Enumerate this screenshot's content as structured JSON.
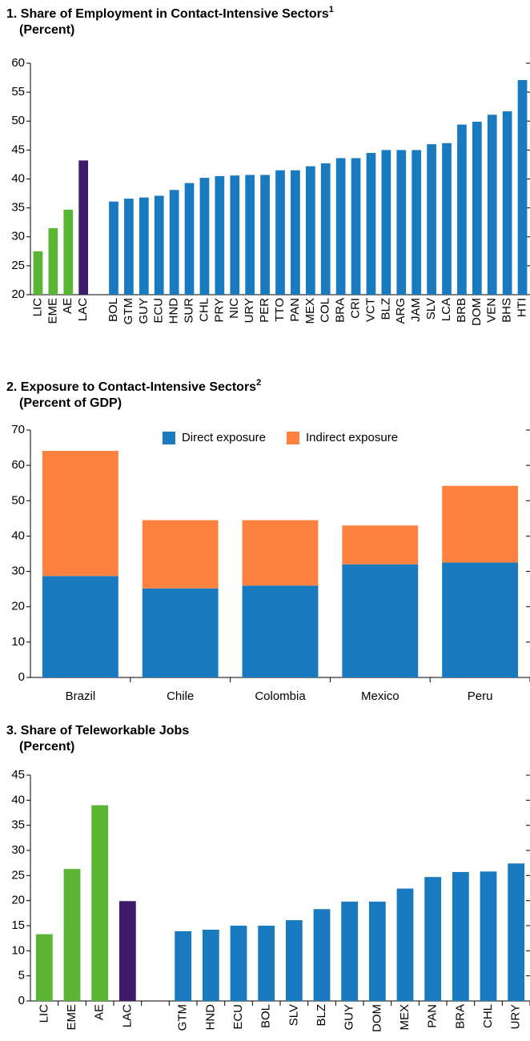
{
  "chart_data": [
    {
      "type": "bar",
      "title": "1. Share of Employment in Contact-Intensive Sectors",
      "title_note": "1",
      "subtitle": "(Percent)",
      "categories": [
        "LIC",
        "EME",
        "AE",
        "LAC",
        null,
        "BOL",
        "GTM",
        "GUY",
        "ECU",
        "HND",
        "SUR",
        "CHL",
        "PRY",
        "NIC",
        "URY",
        "PER",
        "TTO",
        "PAN",
        "MEX",
        "COL",
        "BRA",
        "CRI",
        "VCT",
        "BLZ",
        "ARG",
        "JAM",
        "SLV",
        "LCA",
        "BRB",
        "DOM",
        "VEN",
        "BHS",
        "HTI"
      ],
      "values": [
        27.5,
        31.5,
        34.7,
        43.2,
        null,
        36.1,
        36.6,
        36.8,
        37.1,
        38.1,
        39.3,
        40.2,
        40.5,
        40.6,
        40.7,
        40.7,
        41.5,
        41.5,
        42.2,
        42.7,
        43.6,
        43.6,
        44.5,
        45.0,
        45.0,
        45.0,
        46.0,
        46.2,
        49.4,
        49.9,
        51.1,
        51.7,
        57.1
      ],
      "colors": [
        "#5ab534",
        "#5ab534",
        "#5ab534",
        "#3f1a6a",
        null,
        "#1a7abf",
        "#1a7abf",
        "#1a7abf",
        "#1a7abf",
        "#1a7abf",
        "#1a7abf",
        "#1a7abf",
        "#1a7abf",
        "#1a7abf",
        "#1a7abf",
        "#1a7abf",
        "#1a7abf",
        "#1a7abf",
        "#1a7abf",
        "#1a7abf",
        "#1a7abf",
        "#1a7abf",
        "#1a7abf",
        "#1a7abf",
        "#1a7abf",
        "#1a7abf",
        "#1a7abf",
        "#1a7abf",
        "#1a7abf",
        "#1a7abf",
        "#1a7abf",
        "#1a7abf",
        "#1a7abf"
      ],
      "ylim": [
        20,
        60
      ],
      "yticks": [
        20,
        25,
        30,
        35,
        40,
        45,
        50,
        55,
        60
      ]
    },
    {
      "type": "stacked_bar",
      "title": "2. Exposure to Contact-Intensive Sectors",
      "title_note": "2",
      "subtitle": "(Percent of GDP)",
      "categories": [
        "Brazil",
        "Chile",
        "Colombia",
        "Mexico",
        "Peru"
      ],
      "series": [
        {
          "name": "Direct exposure",
          "color": "#1a7abf",
          "values": [
            28.7,
            25.2,
            26.0,
            32.0,
            32.5
          ]
        },
        {
          "name": "Indirect exposure",
          "color": "#ff8140",
          "values": [
            35.4,
            19.3,
            18.5,
            11.0,
            21.7
          ]
        }
      ],
      "ylim": [
        0,
        70
      ],
      "yticks": [
        0,
        10,
        20,
        30,
        40,
        50,
        60,
        70
      ],
      "legend": "top"
    },
    {
      "type": "bar",
      "title": "3. Share of Teleworkable Jobs",
      "subtitle": "(Percent)",
      "categories": [
        "LIC",
        "EME",
        "AE",
        "LAC",
        null,
        "GTM",
        "HND",
        "ECU",
        "BOL",
        "SLV",
        "BLZ",
        "GUY",
        "DOM",
        "MEX",
        "PAN",
        "BRA",
        "CHL",
        "URY"
      ],
      "values": [
        13.3,
        26.3,
        39.0,
        19.9,
        null,
        13.9,
        14.2,
        15.0,
        15.0,
        16.1,
        18.3,
        19.8,
        19.8,
        22.4,
        24.7,
        25.7,
        25.8,
        27.4
      ],
      "colors": [
        "#5ab534",
        "#5ab534",
        "#5ab534",
        "#3f1a6a",
        null,
        "#1a7abf",
        "#1a7abf",
        "#1a7abf",
        "#1a7abf",
        "#1a7abf",
        "#1a7abf",
        "#1a7abf",
        "#1a7abf",
        "#1a7abf",
        "#1a7abf",
        "#1a7abf",
        "#1a7abf",
        "#1a7abf"
      ],
      "ylim": [
        0,
        45
      ],
      "yticks": [
        0,
        5,
        10,
        15,
        20,
        25,
        30,
        35,
        40,
        45
      ]
    }
  ]
}
